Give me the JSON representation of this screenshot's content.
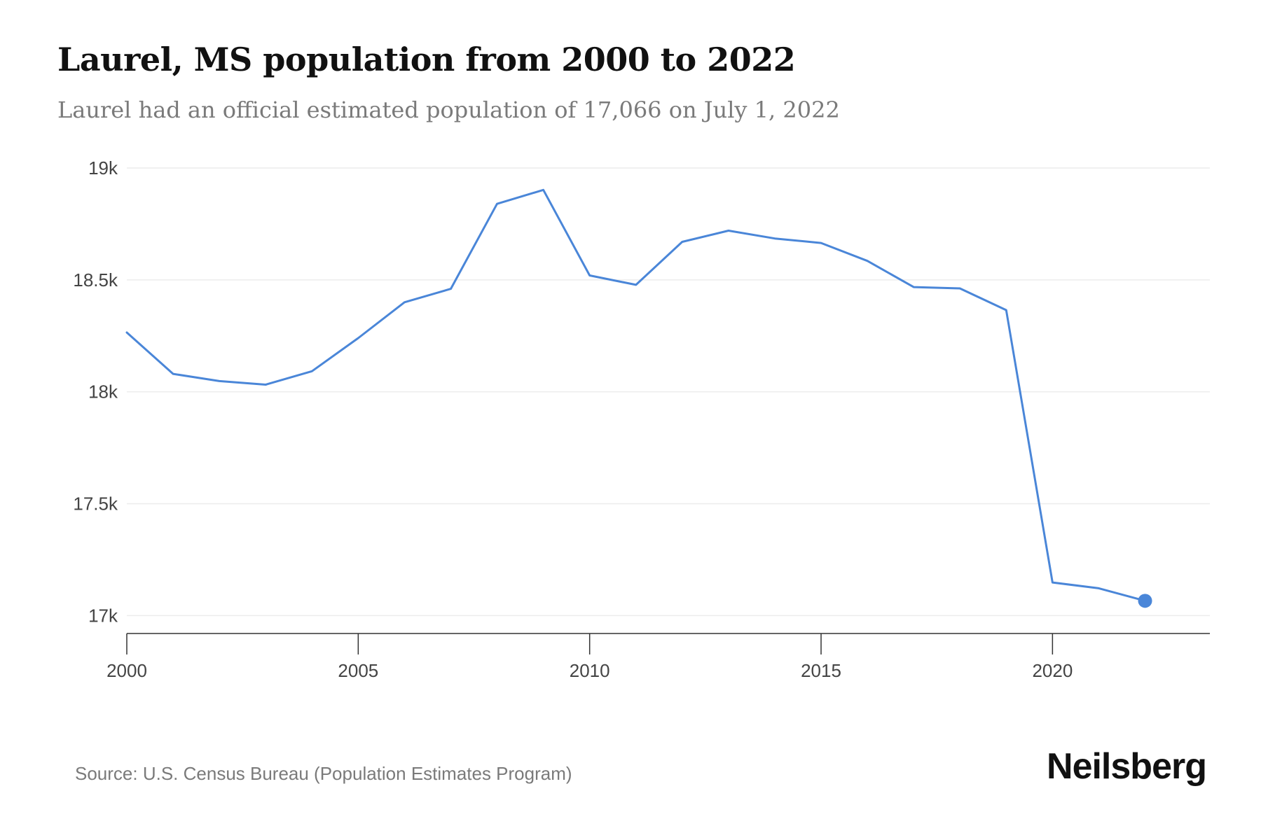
{
  "header": {
    "title": "Laurel, MS population from 2000 to 2022",
    "subtitle": "Laurel had an official estimated population of 17,066 on July 1, 2022"
  },
  "footer": {
    "source": "Source: U.S. Census Bureau (Population Estimates Program)",
    "brand": "Neilsberg"
  },
  "colors": {
    "line": "#4a86d8",
    "grid": "#ececec",
    "axis": "#333333"
  },
  "chart_data": {
    "type": "line",
    "title": "Laurel, MS population from 2000 to 2022",
    "subtitle": "Laurel had an official estimated population of 17,066 on July 1, 2022",
    "x": [
      2000,
      2001,
      2002,
      2003,
      2004,
      2005,
      2006,
      2007,
      2008,
      2009,
      2010,
      2011,
      2012,
      2013,
      2014,
      2015,
      2016,
      2017,
      2018,
      2019,
      2020,
      2021,
      2022
    ],
    "y": [
      18265,
      18080,
      18048,
      18032,
      18092,
      18240,
      18400,
      18460,
      18840,
      18902,
      18520,
      18478,
      18670,
      18720,
      18685,
      18665,
      18585,
      18468,
      18462,
      18365,
      17148,
      17122,
      17066
    ],
    "xlim": [
      2000,
      2023.4
    ],
    "ylim": [
      16920,
      19000
    ],
    "x_ticks": [
      2000,
      2005,
      2010,
      2015,
      2020
    ],
    "x_tick_labels": [
      "2000",
      "2005",
      "2010",
      "2015",
      "2020"
    ],
    "y_ticks": [
      17000,
      17500,
      18000,
      18500,
      19000
    ],
    "y_tick_labels": [
      "17k",
      "17.5k",
      "18k",
      "18.5k",
      "19k"
    ],
    "grid": true,
    "highlight_last_point": true,
    "xlabel": "",
    "ylabel": ""
  }
}
